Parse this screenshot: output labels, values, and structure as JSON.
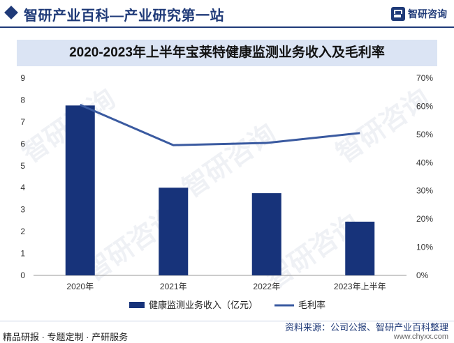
{
  "header": {
    "title": "智研产业百科—产业研究第一站",
    "logo_text": "智研咨询"
  },
  "watermark": "智研咨询",
  "colors": {
    "bar": "#17337a",
    "line": "#3a5aa0",
    "accent": "#1f3a78"
  },
  "chart_data": {
    "type": "bar",
    "title": "2020-2023年上半年宝莱特健康监测业务收入及毛利率",
    "categories": [
      "2020年",
      "2021年",
      "2022年",
      "2023年上半年"
    ],
    "series": [
      {
        "name": "健康监测业务收入（亿元）",
        "type": "bar",
        "axis": "left",
        "values": [
          7.75,
          4.0,
          3.75,
          2.45
        ]
      },
      {
        "name": "毛利率",
        "type": "line",
        "axis": "right",
        "values": [
          60.5,
          46.2,
          47.0,
          50.5
        ]
      }
    ],
    "y_left": {
      "min": 0,
      "max": 9,
      "ticks": [
        "0",
        "1",
        "2",
        "3",
        "4",
        "5",
        "6",
        "7",
        "8",
        "9"
      ]
    },
    "y_right": {
      "min": 0,
      "max": 70,
      "ticks": [
        "0%",
        "10%",
        "20%",
        "30%",
        "40%",
        "50%",
        "60%",
        "70%"
      ]
    },
    "grid": false,
    "legend_position": "bottom"
  },
  "footer": {
    "left": "精品研报 · 专题定制 · 产研服务",
    "source": "资料来源：公司公报、智研产业百科整理",
    "url": "www.chyxx.com"
  }
}
